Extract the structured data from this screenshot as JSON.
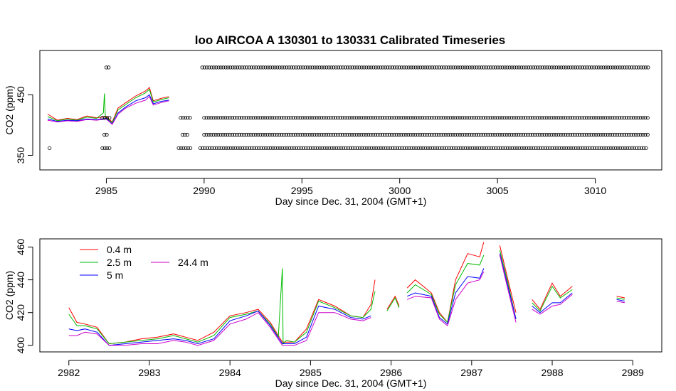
{
  "chart_data": [
    {
      "type": "scatter",
      "title": "loo   AIRCOA  A    130301  to  130331   Calibrated Timeseries",
      "xlabel": "Day since Dec. 31, 2004 (GMT+1)",
      "ylabel": "CO2 (ppm)",
      "xlim": [
        2981.6,
        3013.4
      ],
      "ylim": [
        326,
        523
      ],
      "x_ticks": [
        2985,
        2990,
        2995,
        3000,
        3005,
        3010
      ],
      "y_ticks": [
        350,
        450
      ],
      "series": [
        {
          "role": "0.4 m",
          "color": "#ff0000",
          "x": [
            2982.0,
            2982.5,
            2983.0,
            2983.5,
            2984.0,
            2984.5,
            2985.0,
            2985.3,
            2985.6,
            2986.0,
            2986.5,
            2987.0,
            2987.2,
            2987.4,
            2987.8,
            2988.2
          ],
          "y": [
            418,
            408,
            411,
            409,
            415,
            412,
            414,
            405,
            428,
            437,
            448,
            456,
            462,
            440,
            444,
            447
          ]
        },
        {
          "role": "2.5 m",
          "color": "#00bb00",
          "x": [
            2982.0,
            2982.5,
            2983.0,
            2983.5,
            2984.0,
            2984.5,
            2984.85,
            2984.9,
            2984.95,
            2985.3,
            2985.6,
            2986.0,
            2986.5,
            2987.0,
            2987.2,
            2987.4,
            2987.8,
            2988.2
          ],
          "y": [
            414,
            407,
            410,
            408,
            413,
            411,
            420,
            452,
            413,
            404,
            425,
            434,
            445,
            453,
            459,
            438,
            442,
            445
          ]
        },
        {
          "role": "5 m",
          "color": "#0000ff",
          "x": [
            2982.0,
            2982.5,
            2983.0,
            2983.5,
            2984.0,
            2984.5,
            2985.0,
            2985.3,
            2985.6,
            2986.0,
            2986.5,
            2987.0,
            2987.2,
            2987.4,
            2987.8,
            2988.2
          ],
          "y": [
            410,
            406,
            408,
            407,
            410,
            409,
            411,
            402,
            420,
            430,
            440,
            445,
            450,
            435,
            439,
            441
          ]
        },
        {
          "role": "24.4 m",
          "color": "#cc00cc",
          "x": [
            2982.0,
            2982.5,
            2983.0,
            2983.5,
            2984.0,
            2984.5,
            2985.0,
            2985.3,
            2985.6,
            2986.0,
            2986.5,
            2987.0,
            2987.2,
            2987.4,
            2987.8,
            2988.2
          ],
          "y": [
            408,
            405,
            407,
            406,
            409,
            408,
            410,
            401,
            418,
            428,
            436,
            441,
            447,
            433,
            437,
            440
          ]
        }
      ],
      "point_rows": [
        {
          "name": "row-495",
          "y": 495,
          "segments": [
            [
              2985.0,
              2985.15
            ],
            [
              2989.9,
              3012.7
            ]
          ]
        },
        {
          "name": "row-412",
          "y": 412,
          "segments": [
            [
              2984.8,
              2985.2
            ],
            [
              2988.8,
              2989.3
            ],
            [
              2990.0,
              3012.7
            ]
          ]
        },
        {
          "name": "row-384",
          "y": 384,
          "segments": [
            [
              2984.9,
              2985.1
            ],
            [
              2988.9,
              2989.2
            ],
            [
              2990.0,
              3012.7
            ]
          ]
        },
        {
          "name": "row-362",
          "y": 362,
          "segments": [
            [
              2982.1,
              2982.2
            ],
            [
              2984.8,
              2985.2
            ],
            [
              2988.7,
              2989.3
            ],
            [
              2989.8,
              3012.7
            ]
          ]
        }
      ]
    },
    {
      "type": "line",
      "title": "",
      "xlabel": "Day since Dec. 31, 2004 (GMT+1)",
      "ylabel": "CO2 (ppm)",
      "xlim": [
        2981.64,
        2989.36
      ],
      "ylim": [
        396,
        465
      ],
      "x_ticks": [
        2982,
        2983,
        2984,
        2985,
        2986,
        2987,
        2988,
        2989
      ],
      "y_ticks": [
        400,
        420,
        440,
        460
      ],
      "legend_placement": "top-left",
      "series": [
        {
          "name": "0.4 m",
          "color": "#ff0000",
          "x": [
            2982.0,
            2982.1,
            2982.2,
            2982.35,
            2982.5,
            2982.7,
            2982.9,
            2983.1,
            2983.3,
            2983.45,
            2983.6,
            2983.8,
            2984.0,
            2984.2,
            2984.35,
            2984.5,
            2984.65,
            2984.8,
            2984.95,
            2985.1,
            2985.3,
            2985.5,
            2985.65,
            2985.75,
            2985.8,
            null,
            2985.95,
            2986.05,
            2986.1,
            null,
            2986.2,
            2986.3,
            2986.5,
            2986.6,
            2986.7,
            2986.8,
            2986.95,
            2987.1,
            2987.15,
            null,
            2987.35,
            2987.45,
            2987.55,
            null,
            2987.75,
            2987.85,
            2988.0,
            2988.1,
            2988.25,
            null,
            2988.8,
            2988.9
          ],
          "y": [
            423,
            414,
            413,
            411,
            401,
            402,
            404,
            405,
            407,
            405,
            403,
            408,
            418,
            420,
            422,
            414,
            402,
            402,
            410,
            428,
            424,
            418,
            417,
            425,
            440,
            null,
            422,
            430,
            424,
            null,
            435,
            440,
            432,
            420,
            414,
            440,
            456,
            454,
            463,
            null,
            461,
            440,
            420,
            null,
            428,
            422,
            438,
            430,
            436,
            null,
            430,
            429
          ]
        },
        {
          "name": "2.5 m",
          "color": "#00bb00",
          "x": [
            2982.0,
            2982.1,
            2982.2,
            2982.35,
            2982.5,
            2982.7,
            2982.9,
            2983.1,
            2983.3,
            2983.45,
            2983.6,
            2983.8,
            2984.0,
            2984.2,
            2984.35,
            2984.5,
            2984.6,
            2984.65,
            2984.66,
            2984.7,
            2984.8,
            2984.95,
            2985.1,
            2985.3,
            2985.5,
            2985.65,
            2985.75,
            2985.8,
            null,
            2985.95,
            2986.05,
            2986.1,
            null,
            2986.2,
            2986.3,
            2986.5,
            2986.6,
            2986.7,
            2986.8,
            2986.95,
            2987.1,
            2987.15,
            null,
            2987.35,
            2987.45,
            2987.55,
            null,
            2987.75,
            2987.85,
            2988.0,
            2988.1,
            2988.25,
            null,
            2988.8,
            2988.9
          ],
          "y": [
            419,
            412,
            412,
            410,
            401,
            402,
            403,
            404,
            406,
            404,
            402,
            406,
            417,
            419,
            421,
            413,
            405,
            447,
            401,
            403,
            402,
            408,
            427,
            423,
            418,
            417,
            422,
            433,
            null,
            421,
            429,
            423,
            null,
            432,
            437,
            431,
            419,
            414,
            437,
            450,
            449,
            455,
            null,
            458,
            438,
            416,
            null,
            426,
            421,
            436,
            429,
            434,
            null,
            429,
            428
          ]
        },
        {
          "name": "5 m",
          "color": "#0000ff",
          "x": [
            2982.0,
            2982.1,
            2982.2,
            2982.35,
            2982.5,
            2982.7,
            2982.9,
            2983.1,
            2983.3,
            2983.45,
            2983.6,
            2983.8,
            2984.0,
            2984.2,
            2984.35,
            2984.5,
            2984.65,
            2984.8,
            2984.95,
            2985.1,
            2985.3,
            2985.5,
            2985.65,
            2985.75,
            2985.8,
            null,
            2986.2,
            2986.3,
            2986.5,
            2986.6,
            2986.7,
            2986.8,
            2986.95,
            2987.1,
            2987.15,
            null,
            2987.35,
            2987.45,
            2987.55,
            null,
            2987.75,
            2987.85,
            2988.0,
            2988.1,
            2988.25,
            null,
            2988.8,
            2988.9
          ],
          "y": [
            410,
            409,
            410,
            408,
            400,
            401,
            402,
            403,
            404,
            403,
            401,
            404,
            415,
            418,
            421,
            412,
            401,
            401,
            405,
            424,
            422,
            417,
            416,
            418,
            null,
            null,
            430,
            432,
            430,
            417,
            413,
            432,
            442,
            441,
            447,
            null,
            456,
            436,
            416,
            null,
            424,
            420,
            426,
            426,
            432,
            null,
            428,
            427
          ]
        },
        {
          "name": "24.4 m",
          "color": "#cc00cc",
          "x": [
            2982.0,
            2982.1,
            2982.2,
            2982.35,
            2982.5,
            2982.7,
            2982.9,
            2983.1,
            2983.3,
            2983.45,
            2983.6,
            2983.8,
            2984.0,
            2984.2,
            2984.35,
            2984.5,
            2984.65,
            2984.8,
            2984.95,
            2985.1,
            2985.3,
            2985.5,
            2985.65,
            2985.75,
            2985.8,
            null,
            2986.2,
            2986.3,
            2986.5,
            2986.6,
            2986.7,
            2986.8,
            2986.95,
            2987.1,
            2987.15,
            null,
            2987.35,
            2987.45,
            2987.55,
            null,
            2987.75,
            2987.85,
            2988.0,
            2988.1,
            2988.25,
            null,
            2988.8,
            2988.9
          ],
          "y": [
            406,
            406,
            408,
            407,
            400,
            400,
            401,
            401,
            403,
            402,
            400,
            403,
            413,
            416,
            420,
            411,
            400,
            400,
            403,
            420,
            420,
            416,
            415,
            417,
            null,
            null,
            428,
            430,
            429,
            416,
            412,
            428,
            438,
            440,
            445,
            null,
            455,
            434,
            414,
            null,
            422,
            419,
            424,
            425,
            431,
            null,
            427,
            426
          ]
        }
      ]
    }
  ]
}
